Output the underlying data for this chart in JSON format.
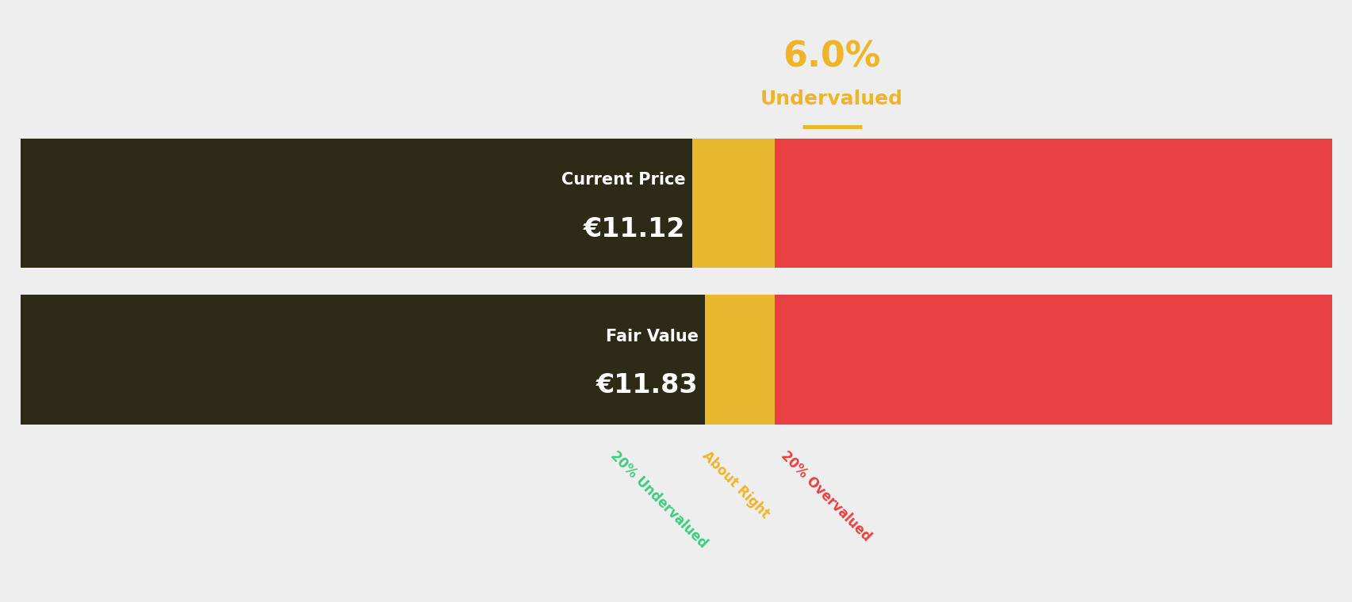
{
  "background_color": "#eeeeee",
  "title_percent": "6.0%",
  "title_label": "Undervalued",
  "title_color": "#f0b429",
  "current_price_label": "Current Price",
  "current_price_value": "€11.12",
  "fair_value_label": "Fair Value",
  "fair_value_value": "€11.83",
  "green_light": "#3dcc80",
  "green_dark": "#1e5c40",
  "amber_dark": "#e6a817",
  "amber_light": "#e8b830",
  "red": "#e84040",
  "price_box_color": "#2d2b18",
  "seg_undervalued": 0.455,
  "seg_amber_dark": 0.055,
  "seg_amber_light": 0.065,
  "annotation_labels": [
    "20% Undervalued",
    "About Right",
    "20% Overvalued"
  ],
  "annotation_colors": [
    "#3dcc80",
    "#f0b429",
    "#e84040"
  ]
}
